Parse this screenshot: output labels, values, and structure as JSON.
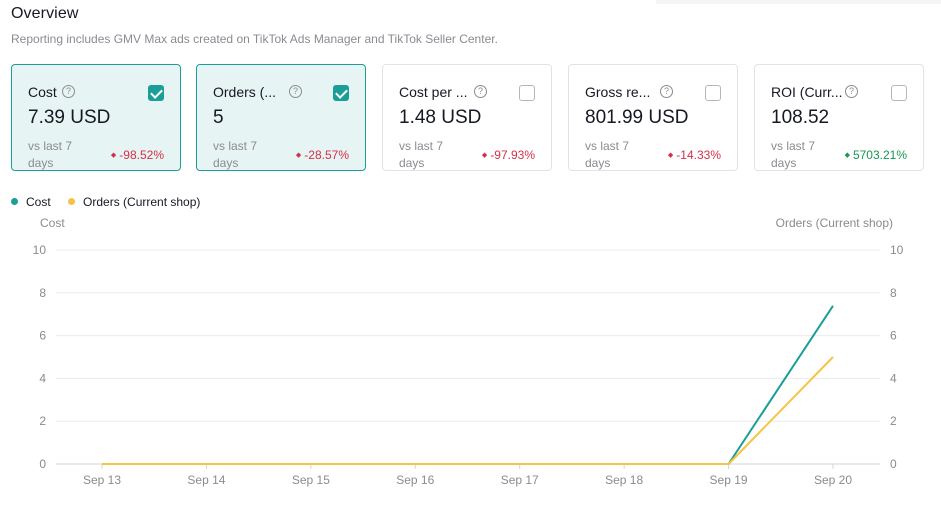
{
  "header": {
    "title": "Overview",
    "subtitle": "Reporting includes GMV Max ads created on TikTok Ads Manager and TikTok Seller Center."
  },
  "cards": [
    {
      "label": "Cost",
      "value": "7.39 USD",
      "compare": "vs last 7 days",
      "change": "-98.52%",
      "direction": "down",
      "checked": true
    },
    {
      "label": "Orders (...",
      "value": "5",
      "compare": "vs last 7 days",
      "change": "-28.57%",
      "direction": "down",
      "checked": true
    },
    {
      "label": "Cost per ...",
      "value": "1.48 USD",
      "compare": "vs last 7 days",
      "change": "-97.93%",
      "direction": "down",
      "checked": false
    },
    {
      "label": "Gross re...",
      "value": "801.99 USD",
      "compare": "vs last 7 days",
      "change": "-14.33%",
      "direction": "down",
      "checked": false
    },
    {
      "label": "ROI (Curr...",
      "value": "108.52",
      "compare": "vs last 7 days",
      "change": "5703.21%",
      "direction": "up",
      "checked": false
    }
  ],
  "colors": {
    "cost": "#1a9e97",
    "orders": "#f6c343",
    "down": "#d4304a",
    "up": "#159a50"
  },
  "chart_data": {
    "type": "line",
    "x": [
      "Sep 13",
      "Sep 14",
      "Sep 15",
      "Sep 16",
      "Sep 17",
      "Sep 18",
      "Sep 19",
      "Sep 20"
    ],
    "series": [
      {
        "name": "Cost",
        "axis": "left",
        "values": [
          0,
          0,
          0,
          0,
          0,
          0,
          0,
          7.39
        ]
      },
      {
        "name": "Orders (Current shop)",
        "axis": "right",
        "values": [
          0,
          0,
          0,
          0,
          0,
          0,
          0,
          5
        ]
      }
    ],
    "ylabel_left": "Cost",
    "ylabel_right": "Orders (Current shop)",
    "ylim": [
      0,
      10
    ],
    "yticks": [
      0,
      2,
      4,
      6,
      8,
      10
    ],
    "grid": true,
    "legend": "top-left"
  }
}
